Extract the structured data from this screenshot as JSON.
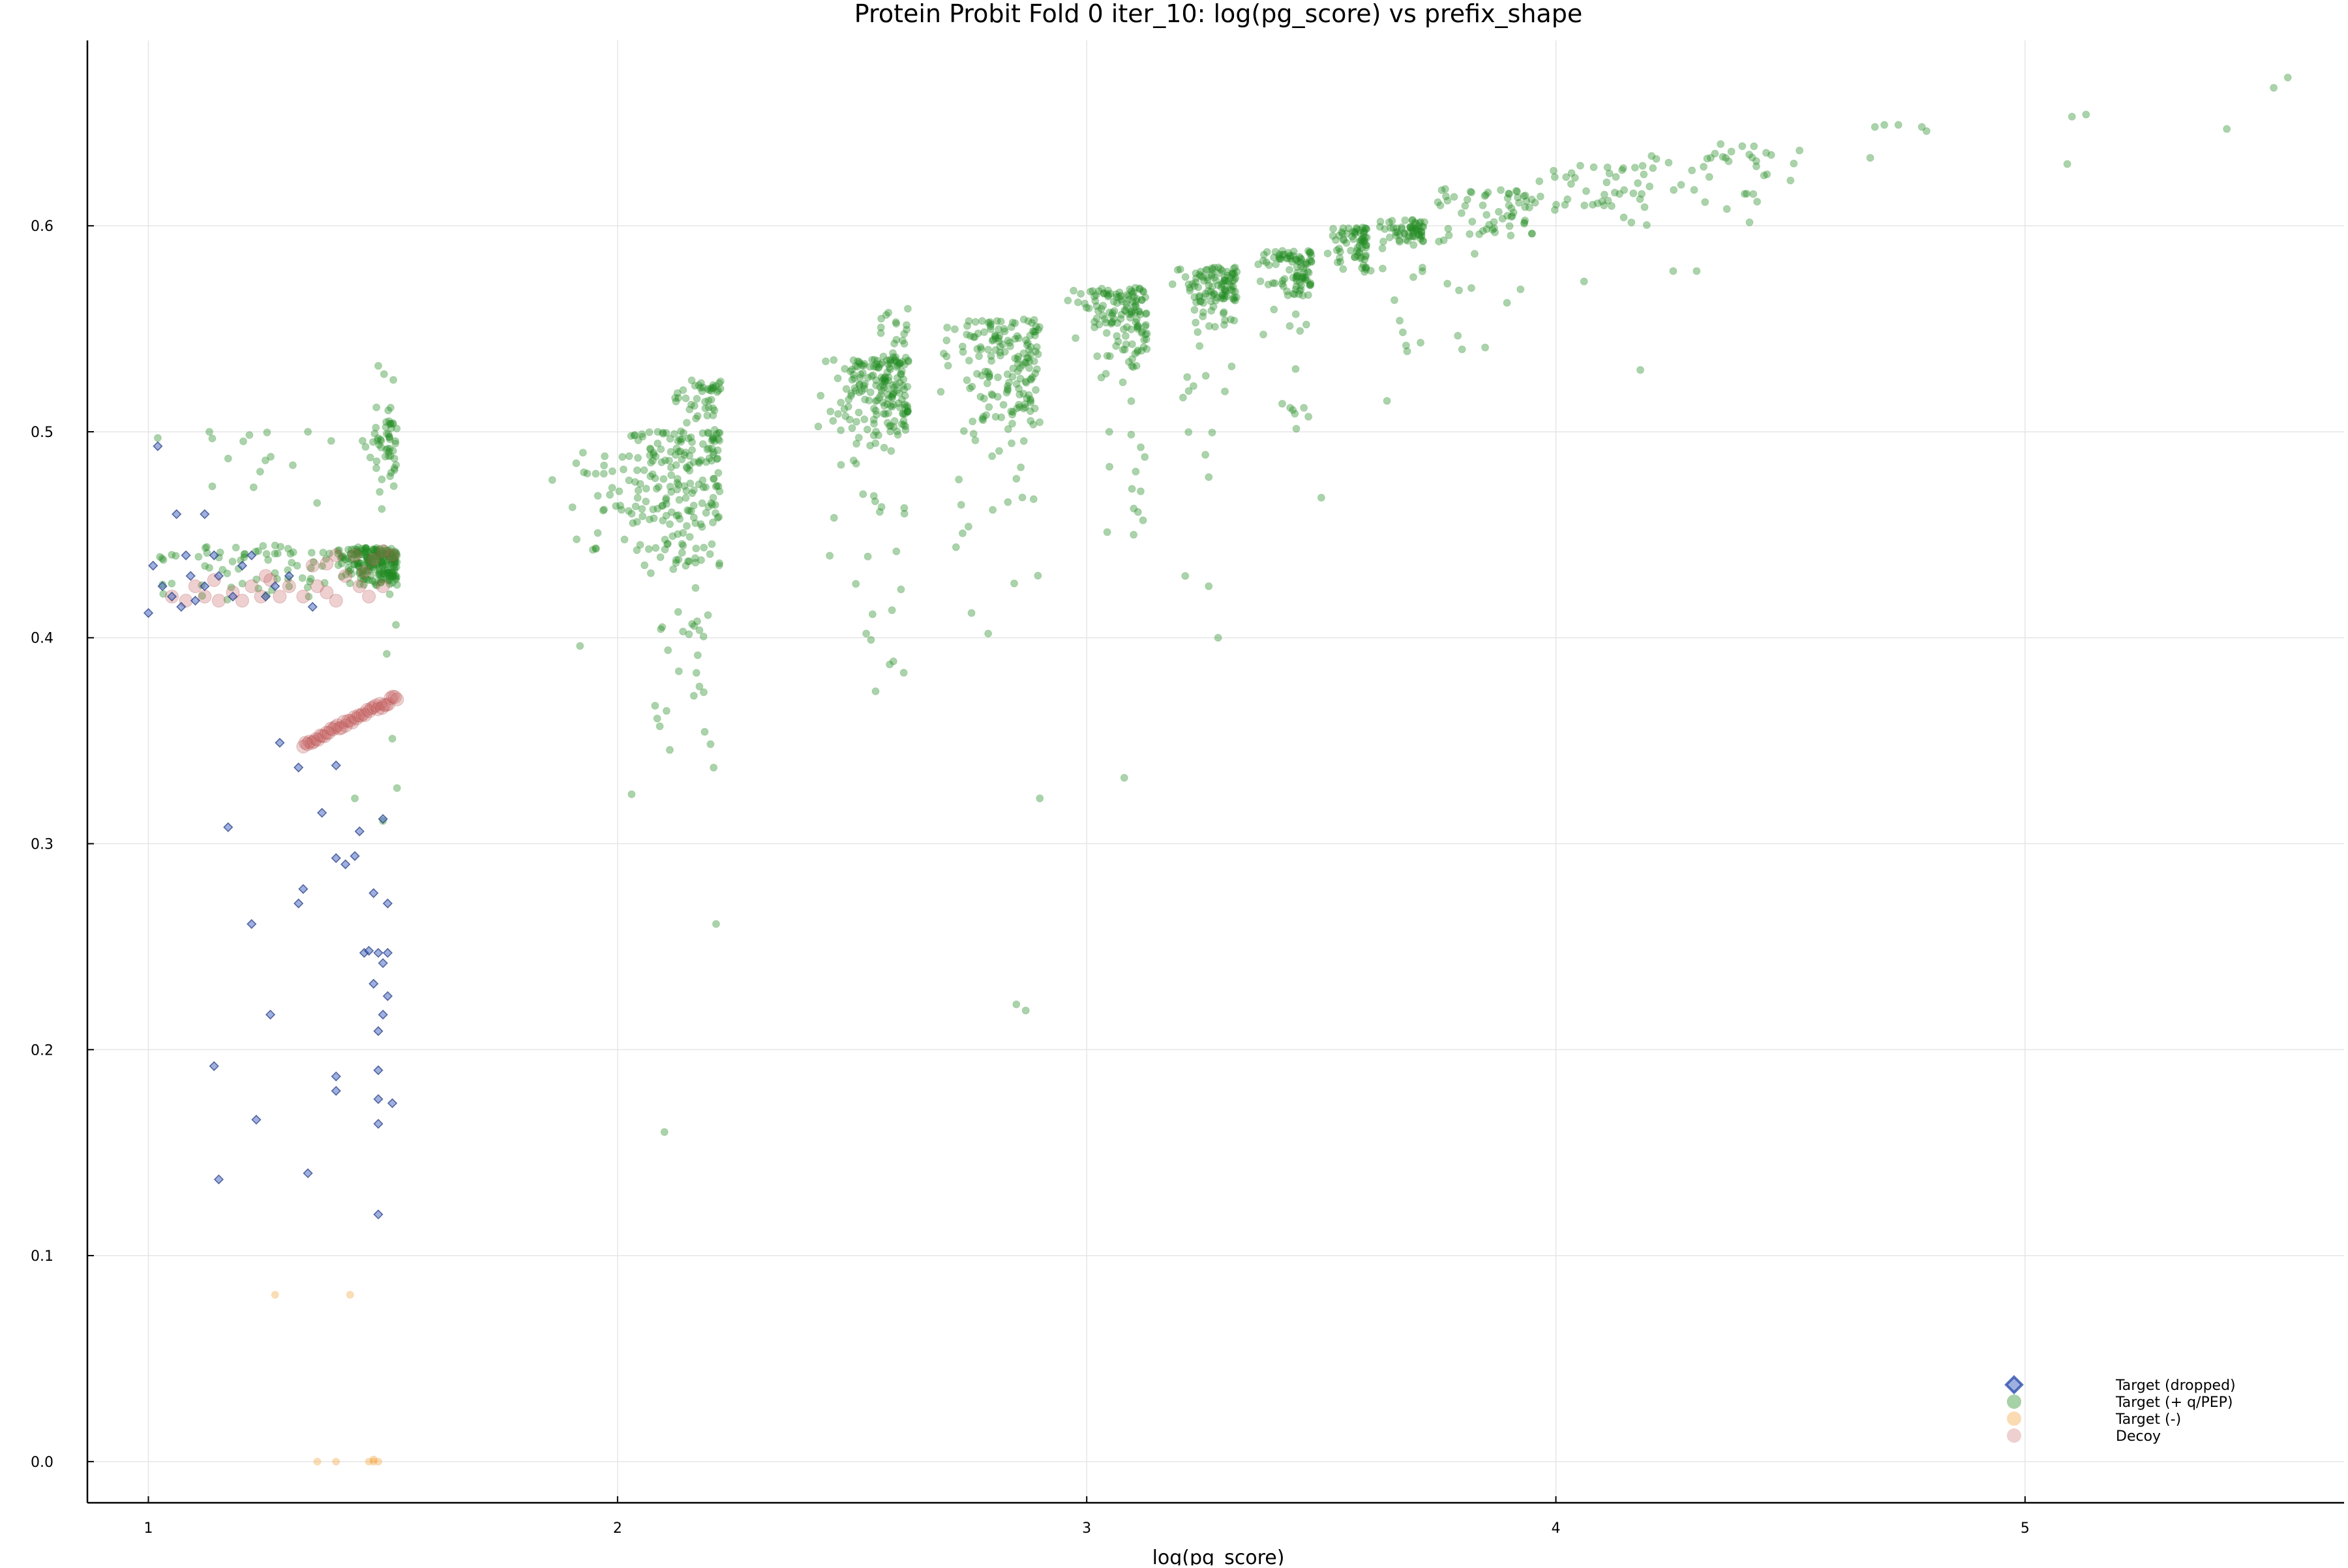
{
  "chart_data": {
    "type": "scatter",
    "title": "Protein Probit Fold 0 iter_10: log(pg_score) vs prefix_shape",
    "xlabel": "log(pg_score)",
    "ylabel": "",
    "xlim": [
      0.87,
      5.68
    ],
    "ylim": [
      -0.02,
      0.69
    ],
    "xticks": [
      1,
      2,
      3,
      4,
      5
    ],
    "yticks": [
      0.0,
      0.1,
      0.2,
      0.3,
      0.4,
      0.5,
      0.6
    ],
    "xtick_labels": [
      "1",
      "2",
      "3",
      "4",
      "5"
    ],
    "ytick_labels": [
      "0.0",
      "0.1",
      "0.2",
      "0.3",
      "0.4",
      "0.5",
      "0.6"
    ],
    "grid": true,
    "legend_position": "bottom-right",
    "series": [
      {
        "name": "Target (dropped)",
        "marker": "diamond",
        "color": "#4060c0",
        "points": [
          [
            1.02,
            0.493
          ],
          [
            1.06,
            0.46
          ],
          [
            1.12,
            0.46
          ],
          [
            1.0,
            0.412
          ],
          [
            1.01,
            0.435
          ],
          [
            1.03,
            0.425
          ],
          [
            1.05,
            0.42
          ],
          [
            1.07,
            0.415
          ],
          [
            1.09,
            0.43
          ],
          [
            1.1,
            0.418
          ],
          [
            1.12,
            0.425
          ],
          [
            1.14,
            0.44
          ],
          [
            1.15,
            0.43
          ],
          [
            1.18,
            0.42
          ],
          [
            1.2,
            0.435
          ],
          [
            1.22,
            0.44
          ],
          [
            1.25,
            0.42
          ],
          [
            1.27,
            0.425
          ],
          [
            1.3,
            0.43
          ],
          [
            1.08,
            0.44
          ],
          [
            1.35,
            0.415
          ],
          [
            1.28,
            0.349
          ],
          [
            1.32,
            0.337
          ],
          [
            1.37,
            0.315
          ],
          [
            1.4,
            0.338
          ],
          [
            1.45,
            0.306
          ],
          [
            1.5,
            0.312
          ],
          [
            1.17,
            0.308
          ],
          [
            1.4,
            0.293
          ],
          [
            1.42,
            0.29
          ],
          [
            1.44,
            0.294
          ],
          [
            1.33,
            0.278
          ],
          [
            1.32,
            0.271
          ],
          [
            1.48,
            0.276
          ],
          [
            1.51,
            0.271
          ],
          [
            1.22,
            0.261
          ],
          [
            1.46,
            0.247
          ],
          [
            1.47,
            0.248
          ],
          [
            1.49,
            0.247
          ],
          [
            1.51,
            0.247
          ],
          [
            1.48,
            0.232
          ],
          [
            1.5,
            0.242
          ],
          [
            1.26,
            0.217
          ],
          [
            1.51,
            0.226
          ],
          [
            1.5,
            0.217
          ],
          [
            1.49,
            0.209
          ],
          [
            1.14,
            0.192
          ],
          [
            1.4,
            0.187
          ],
          [
            1.49,
            0.19
          ],
          [
            1.4,
            0.18
          ],
          [
            1.52,
            0.174
          ],
          [
            1.49,
            0.176
          ],
          [
            1.23,
            0.166
          ],
          [
            1.49,
            0.164
          ],
          [
            1.15,
            0.137
          ],
          [
            1.34,
            0.14
          ],
          [
            1.49,
            0.12
          ]
        ]
      },
      {
        "name": "Target (+ q/PEP)",
        "marker": "circle",
        "color": "#228b22",
        "clusters": [
          {
            "x_min": 1.35,
            "x_max": 1.53,
            "y_min": 0.425,
            "y_max": 0.444,
            "n": 220,
            "x_bias": 2.0
          },
          {
            "x_min": 1.02,
            "x_max": 1.35,
            "y_min": 0.415,
            "y_max": 0.445,
            "n": 60,
            "x_bias": 1.0
          },
          {
            "x_min": 1.47,
            "x_max": 1.53,
            "y_min": 0.47,
            "y_max": 0.505,
            "n": 40,
            "x_bias": 1.5
          },
          {
            "x_min": 1.1,
            "x_max": 1.5,
            "y_min": 0.462,
            "y_max": 0.5,
            "n": 14,
            "x_bias": 1.0
          },
          {
            "x_min": 1.48,
            "x_max": 1.53,
            "y_min": 0.33,
            "y_max": 0.545,
            "n": 14,
            "x_bias": 1.0
          },
          {
            "x_min": 1.85,
            "x_max": 2.22,
            "y_min": 0.43,
            "y_max": 0.5,
            "n": 220,
            "x_bias": 2.5
          },
          {
            "x_min": 2.1,
            "x_max": 2.22,
            "y_min": 0.495,
            "y_max": 0.525,
            "n": 50,
            "x_bias": 2.0
          },
          {
            "x_min": 2.02,
            "x_max": 2.22,
            "y_min": 0.33,
            "y_max": 0.43,
            "n": 25,
            "x_bias": 1.5
          },
          {
            "x_min": 2.4,
            "x_max": 2.62,
            "y_min": 0.49,
            "y_max": 0.535,
            "n": 180,
            "x_bias": 2.5
          },
          {
            "x_min": 2.45,
            "x_max": 2.62,
            "y_min": 0.38,
            "y_max": 0.49,
            "n": 20,
            "x_bias": 1.2
          },
          {
            "x_min": 2.55,
            "x_max": 2.62,
            "y_min": 0.53,
            "y_max": 0.56,
            "n": 20,
            "x_bias": 1.5
          },
          {
            "x_min": 2.65,
            "x_max": 2.9,
            "y_min": 0.49,
            "y_max": 0.555,
            "n": 170,
            "x_bias": 2.5
          },
          {
            "x_min": 2.72,
            "x_max": 2.9,
            "y_min": 0.4,
            "y_max": 0.49,
            "n": 15,
            "x_bias": 1.0
          },
          {
            "x_min": 2.95,
            "x_max": 3.13,
            "y_min": 0.53,
            "y_max": 0.57,
            "n": 130,
            "x_bias": 2.5
          },
          {
            "x_min": 3.0,
            "x_max": 3.13,
            "y_min": 0.44,
            "y_max": 0.53,
            "n": 15,
            "x_bias": 1.0
          },
          {
            "x_min": 3.18,
            "x_max": 3.32,
            "y_min": 0.55,
            "y_max": 0.58,
            "n": 110,
            "x_bias": 2.5
          },
          {
            "x_min": 3.2,
            "x_max": 3.32,
            "y_min": 0.47,
            "y_max": 0.55,
            "n": 12,
            "x_bias": 1.0
          },
          {
            "x_min": 3.35,
            "x_max": 3.48,
            "y_min": 0.565,
            "y_max": 0.588,
            "n": 90,
            "x_bias": 2.5
          },
          {
            "x_min": 3.35,
            "x_max": 3.48,
            "y_min": 0.5,
            "y_max": 0.565,
            "n": 14,
            "x_bias": 1.0
          },
          {
            "x_min": 3.5,
            "x_max": 3.6,
            "y_min": 0.575,
            "y_max": 0.6,
            "n": 70,
            "x_bias": 2.5
          },
          {
            "x_min": 3.6,
            "x_max": 3.72,
            "y_min": 0.59,
            "y_max": 0.603,
            "n": 60,
            "x_bias": 2.5
          },
          {
            "x_min": 3.6,
            "x_max": 3.72,
            "y_min": 0.52,
            "y_max": 0.59,
            "n": 12,
            "x_bias": 1.0
          },
          {
            "x_min": 3.72,
            "x_max": 3.95,
            "y_min": 0.59,
            "y_max": 0.618,
            "n": 60,
            "x_bias": 1.5
          },
          {
            "x_min": 3.75,
            "x_max": 3.95,
            "y_min": 0.54,
            "y_max": 0.59,
            "n": 8,
            "x_bias": 1.0
          },
          {
            "x_min": 3.95,
            "x_max": 4.2,
            "y_min": 0.6,
            "y_max": 0.63,
            "n": 45,
            "x_bias": 1.5
          },
          {
            "x_min": 4.2,
            "x_max": 4.52,
            "y_min": 0.6,
            "y_max": 0.64,
            "n": 35,
            "x_bias": 1.0
          }
        ],
        "points": [
          [
            4.68,
            0.648
          ],
          [
            4.7,
            0.649
          ],
          [
            4.73,
            0.649
          ],
          [
            4.78,
            0.648
          ],
          [
            4.79,
            0.646
          ],
          [
            4.67,
            0.633
          ],
          [
            5.1,
            0.653
          ],
          [
            5.13,
            0.654
          ],
          [
            5.09,
            0.63
          ],
          [
            5.43,
            0.647
          ],
          [
            5.53,
            0.667
          ],
          [
            5.56,
            0.672
          ],
          [
            4.33,
            0.633
          ],
          [
            4.45,
            0.625
          ],
          [
            4.5,
            0.622
          ],
          [
            4.18,
            0.53
          ],
          [
            4.06,
            0.573
          ],
          [
            4.25,
            0.578
          ],
          [
            4.3,
            0.578
          ],
          [
            2.1,
            0.16
          ],
          [
            2.21,
            0.261
          ],
          [
            2.85,
            0.222
          ],
          [
            2.87,
            0.219
          ],
          [
            2.9,
            0.322
          ],
          [
            3.08,
            0.332
          ],
          [
            3.28,
            0.4
          ],
          [
            3.21,
            0.43
          ],
          [
            3.26,
            0.425
          ],
          [
            2.79,
            0.402
          ],
          [
            2.53,
            0.402
          ],
          [
            2.55,
            0.374
          ],
          [
            2.58,
            0.387
          ],
          [
            2.61,
            0.383
          ],
          [
            1.92,
            0.396
          ],
          [
            2.03,
            0.324
          ],
          [
            2.08,
            0.367
          ],
          [
            2.09,
            0.357
          ],
          [
            3.12,
            0.457
          ],
          [
            3.1,
            0.45
          ],
          [
            3.5,
            0.468
          ],
          [
            3.26,
            0.478
          ],
          [
            3.64,
            0.515
          ],
          [
            3.8,
            0.54
          ],
          [
            1.02,
            0.497
          ],
          [
            1.13,
            0.5
          ],
          [
            1.34,
            0.5
          ],
          [
            1.17,
            0.487
          ],
          [
            1.49,
            0.532
          ],
          [
            1.52,
            0.351
          ],
          [
            1.5,
            0.311
          ],
          [
            1.44,
            0.322
          ],
          [
            1.53,
            0.327
          ]
        ]
      },
      {
        "name": "Target (-)",
        "marker": "circle",
        "color": "#f4a540",
        "points": [
          [
            1.27,
            0.081
          ],
          [
            1.43,
            0.081
          ],
          [
            1.36,
            0.0
          ],
          [
            1.4,
            0.0
          ],
          [
            1.47,
            0.0
          ],
          [
            1.48,
            0.0
          ],
          [
            1.49,
            0.0
          ],
          [
            1.48,
            0.001
          ]
        ]
      },
      {
        "name": "Decoy",
        "marker": "circle",
        "color": "#c86464",
        "line_segment": {
          "x0": 1.33,
          "y0": 0.348,
          "x1": 1.53,
          "y1": 0.371,
          "n": 45
        },
        "points": [
          [
            1.05,
            0.42
          ],
          [
            1.08,
            0.418
          ],
          [
            1.1,
            0.425
          ],
          [
            1.12,
            0.42
          ],
          [
            1.15,
            0.418
          ],
          [
            1.18,
            0.422
          ],
          [
            1.2,
            0.418
          ],
          [
            1.22,
            0.425
          ],
          [
            1.24,
            0.42
          ],
          [
            1.26,
            0.428
          ],
          [
            1.28,
            0.42
          ],
          [
            1.3,
            0.425
          ],
          [
            1.33,
            0.42
          ],
          [
            1.36,
            0.425
          ],
          [
            1.38,
            0.422
          ],
          [
            1.4,
            0.418
          ],
          [
            1.42,
            0.43
          ],
          [
            1.45,
            0.425
          ],
          [
            1.47,
            0.42
          ],
          [
            1.5,
            0.425
          ],
          [
            1.35,
            0.435
          ],
          [
            1.25,
            0.43
          ],
          [
            1.14,
            0.428
          ],
          [
            1.46,
            0.432
          ],
          [
            1.52,
            0.44
          ],
          [
            1.5,
            0.442
          ],
          [
            1.48,
            0.438
          ],
          [
            1.4,
            0.44
          ],
          [
            1.38,
            0.436
          ],
          [
            1.44,
            0.44
          ]
        ]
      }
    ]
  }
}
